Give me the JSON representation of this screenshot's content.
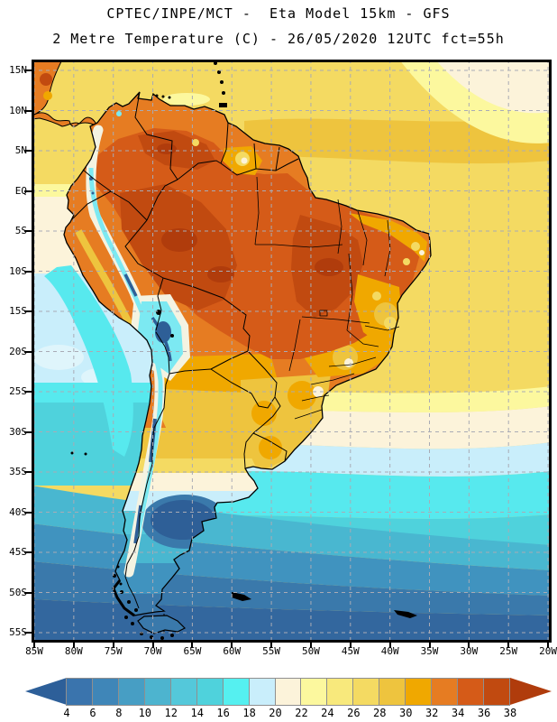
{
  "header": {
    "line1": "CPTEC/INPE/MCT -  Eta Model 15km - GFS",
    "line2": "2 Metre Temperature (C) - 26/05/2020 12UTC fct=55h"
  },
  "axes": {
    "lat_labels": [
      "15N",
      "10N",
      "5N",
      "EQ",
      "5S",
      "10S",
      "15S",
      "20S",
      "25S",
      "30S",
      "35S",
      "40S",
      "45S",
      "50S",
      "55S"
    ],
    "lon_labels": [
      "85W",
      "80W",
      "75W",
      "70W",
      "65W",
      "60W",
      "55W",
      "50W",
      "45W",
      "40W",
      "35W",
      "30W",
      "25W",
      "20W"
    ]
  },
  "colorbar": {
    "values": [
      "4",
      "6",
      "8",
      "10",
      "12",
      "14",
      "16",
      "18",
      "20",
      "22",
      "24",
      "26",
      "28",
      "30",
      "32",
      "34",
      "36",
      "38"
    ],
    "cell_colors": [
      "#3a74ad",
      "#3f86b8",
      "#479ec4",
      "#4db4cf",
      "#54c8da",
      "#4fd2dc",
      "#55f0f0",
      "#c9eefb",
      "#fcf3da",
      "#fcf89e",
      "#f8e97c",
      "#f4da62",
      "#eec43e",
      "#f0a800",
      "#e67c22",
      "#d55b18",
      "#c14a10"
    ],
    "below_min_color": "#2d5f99",
    "above_max_color": "#b03c0c",
    "cell_border_color": "#8f8f8f"
  },
  "map_colors": {
    "ocean_warm": "#f4da62",
    "ocean_band_gold": "#eec43e",
    "land_base": "#e67c22",
    "amazon_hot": "#d55b18",
    "amazon_core": "#c14a10",
    "amazon_extreme": "#b03c0c",
    "andes_snow": "#f4f3e2",
    "andes_cold_cyan": "#7ce9f2",
    "andes_coldest": "#2e5f97",
    "grid_line": "#a9abb5",
    "border_line": "#000000"
  }
}
